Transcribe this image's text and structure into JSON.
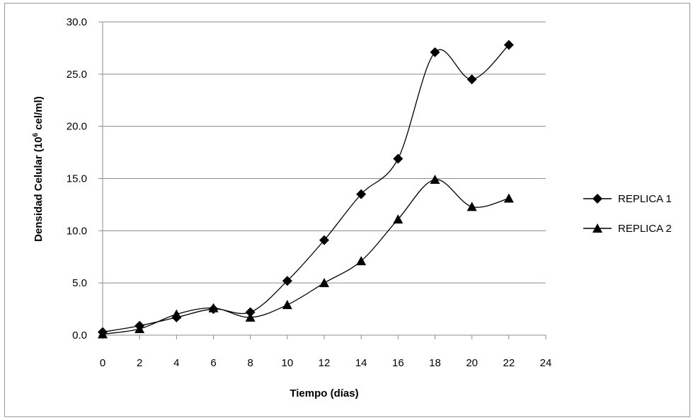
{
  "chart_data": {
    "type": "line",
    "title": "",
    "xlabel": "Tiempo (días)",
    "ylabel": {
      "prefix": "Densidad Celular (10",
      "superscript": "6",
      "suffix": " cel/ml)"
    },
    "xlim": [
      0,
      24
    ],
    "ylim": [
      0,
      30
    ],
    "x_ticks": [
      "0",
      "2",
      "4",
      "6",
      "8",
      "10",
      "12",
      "14",
      "16",
      "18",
      "20",
      "22",
      "24"
    ],
    "y_ticks": [
      "0.0",
      "5.0",
      "10.0",
      "15.0",
      "20.0",
      "25.0",
      "30.0"
    ],
    "grid": "horizontal",
    "smooth": true,
    "legend_position": "right",
    "series": [
      {
        "name": "REPLICA 1",
        "marker": "diamond",
        "color": "#000000",
        "x": [
          0,
          2,
          4,
          6,
          8,
          10,
          12,
          14,
          16,
          18,
          20,
          22
        ],
        "y": [
          0.3,
          0.9,
          1.7,
          2.5,
          2.2,
          5.2,
          9.1,
          13.5,
          16.9,
          27.1,
          24.5,
          27.8
        ]
      },
      {
        "name": "REPLICA 2",
        "marker": "triangle",
        "color": "#000000",
        "x": [
          0,
          2,
          4,
          6,
          8,
          10,
          12,
          14,
          16,
          18,
          20,
          22
        ],
        "y": [
          0.1,
          0.6,
          2.0,
          2.6,
          1.7,
          2.9,
          5.0,
          7.1,
          11.1,
          14.9,
          12.3,
          13.1
        ]
      }
    ]
  }
}
